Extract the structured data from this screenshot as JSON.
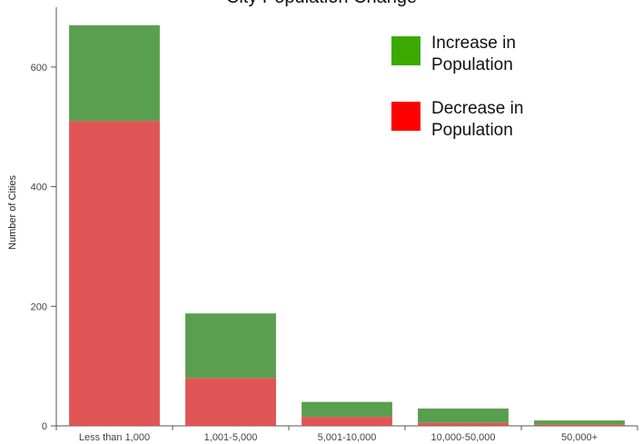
{
  "chart_data": {
    "type": "bar",
    "stacked": true,
    "title": "City Population Change",
    "xlabel": "",
    "ylabel": "Number of Cities",
    "categories": [
      "Less than 1,000",
      "1,001-5,000",
      "5,001-10,000",
      "10,000-50,000",
      "50,000+"
    ],
    "series": [
      {
        "name": "Decrease in Population",
        "values": [
          510,
          80,
          15,
          5,
          2
        ],
        "color": "#e05555"
      },
      {
        "name": "Increase in Population",
        "values": [
          160,
          108,
          25,
          24,
          7
        ],
        "color": "#5a9e4f"
      }
    ],
    "ylim": [
      0,
      700
    ],
    "yticks": [
      0,
      200,
      400,
      600
    ],
    "grid": false,
    "legend": {
      "placement": "top-right",
      "items": [
        {
          "label": "Increase in Population",
          "color": "#3aaa00"
        },
        {
          "label": "Decrease in Population",
          "color": "#ff0000"
        }
      ]
    }
  }
}
